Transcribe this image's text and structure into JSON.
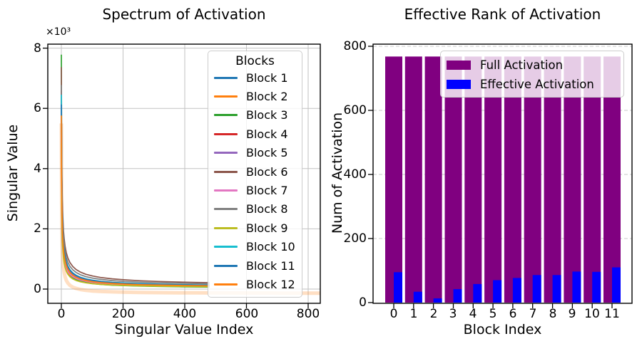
{
  "chart_data": [
    {
      "type": "line",
      "title": "Spectrum of Activation",
      "xlabel": "Singular Value Index",
      "ylabel": "Singular Value",
      "y_offset_label": "×10³",
      "x_ticks": [
        0,
        200,
        400,
        600,
        800
      ],
      "x_tick_labels": [
        "0",
        "200",
        "400",
        "600",
        "800"
      ],
      "y_ticks": [
        0,
        2000,
        4000,
        6000,
        8000
      ],
      "y_tick_labels": [
        "0",
        "2",
        "4",
        "6",
        "8"
      ],
      "xlim": [
        -44,
        839
      ],
      "ylim": [
        -600,
        8150
      ],
      "grid": "solid",
      "legend": {
        "title": "Blocks",
        "position": "upper right"
      },
      "num_points_per_series": 480,
      "series": [
        {
          "name": "Block 1",
          "color": "#1f77b4",
          "first_singular_value": 5300,
          "decay_exp": 0.7,
          "tail": 55
        },
        {
          "name": "Block 2",
          "color": "#ff7f0e",
          "first_singular_value": 5000,
          "decay_exp": 0.74,
          "tail": 40
        },
        {
          "name": "Block 3",
          "color": "#2ca02c",
          "first_singular_value": 7760,
          "decay_exp": 0.84,
          "tail": 25
        },
        {
          "name": "Block 4",
          "color": "#d62728",
          "first_singular_value": 6550,
          "decay_exp": 0.72,
          "tail": 45
        },
        {
          "name": "Block 5",
          "color": "#9467bd",
          "first_singular_value": 5450,
          "decay_exp": 0.71,
          "tail": 60
        },
        {
          "name": "Block 6",
          "color": "#8c564b",
          "first_singular_value": 7280,
          "decay_exp": 0.66,
          "tail": 90
        },
        {
          "name": "Block 7",
          "color": "#e377c2",
          "first_singular_value": 5100,
          "decay_exp": 0.73,
          "tail": 50
        },
        {
          "name": "Block 8",
          "color": "#7f7f7f",
          "first_singular_value": 6700,
          "decay_exp": 0.68,
          "tail": 75
        },
        {
          "name": "Block 9",
          "color": "#bcbd22",
          "first_singular_value": 4800,
          "decay_exp": 0.76,
          "tail": 35
        },
        {
          "name": "Block 10",
          "color": "#17becf",
          "first_singular_value": 6400,
          "decay_exp": 0.71,
          "tail": 55
        },
        {
          "name": "Block 11",
          "color": "#1f77b4",
          "first_singular_value": 6080,
          "decay_exp": 0.7,
          "tail": 48
        },
        {
          "name": "Block 12",
          "color": "#ff7f0e",
          "first_singular_value": 5720,
          "decay_exp": 0.72,
          "tail": 42
        }
      ],
      "faint_overlay": {
        "color": "#ff7f0e",
        "opacity": 0.25,
        "peak": 5500,
        "decay_exp": 0.9,
        "offset": -150,
        "extends_to_x": 839,
        "line_width": 5
      }
    },
    {
      "type": "bar",
      "title": "Effective Rank of Activation",
      "xlabel": "Block Index",
      "ylabel": "Num of Activation",
      "categories": [
        "0",
        "1",
        "2",
        "3",
        "4",
        "5",
        "6",
        "7",
        "8",
        "9",
        "10",
        "11"
      ],
      "y_ticks": [
        0,
        200,
        400,
        600,
        800
      ],
      "y_tick_labels": [
        "0",
        "200",
        "400",
        "600",
        "800"
      ],
      "ylim": [
        0,
        807
      ],
      "grid": "dashed-horizontal",
      "legend": {
        "position": "upper right"
      },
      "series": [
        {
          "name": "Full Activation",
          "color": "#800080",
          "values": [
            768,
            768,
            768,
            768,
            768,
            768,
            768,
            768,
            768,
            768,
            768,
            768
          ]
        },
        {
          "name": "Effective Activation",
          "color": "#0000ff",
          "values": [
            95,
            34,
            13,
            42,
            58,
            70,
            77,
            86,
            86,
            97,
            96,
            110
          ]
        }
      ]
    }
  ]
}
